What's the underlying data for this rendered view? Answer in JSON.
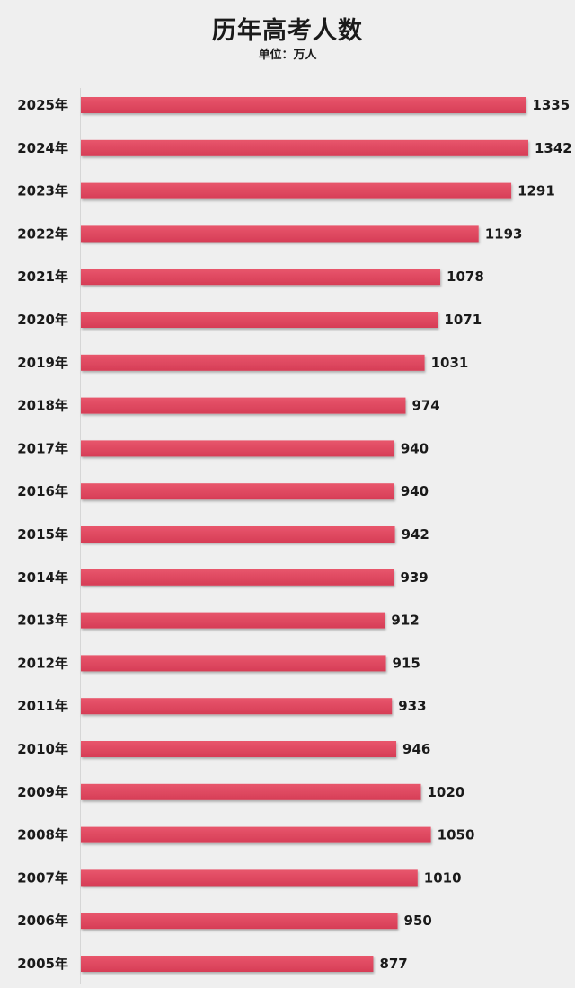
{
  "chart_data": {
    "type": "bar",
    "orientation": "horizontal",
    "title": "历年高考人数",
    "subtitle": "单位：万人",
    "categories": [
      "2025年",
      "2024年",
      "2023年",
      "2022年",
      "2021年",
      "2020年",
      "2019年",
      "2018年",
      "2017年",
      "2016年",
      "2015年",
      "2014年",
      "2013年",
      "2012年",
      "2011年",
      "2010年",
      "2009年",
      "2008年",
      "2007年",
      "2006年",
      "2005年"
    ],
    "values": [
      1335,
      1342,
      1291,
      1193,
      1078,
      1071,
      1031,
      974,
      940,
      940,
      942,
      939,
      912,
      915,
      933,
      946,
      1020,
      1050,
      1010,
      950,
      877
    ],
    "bar_color": "#e0475f",
    "background": "#efefef",
    "data_labels": true,
    "grid": false,
    "legend": "none"
  }
}
